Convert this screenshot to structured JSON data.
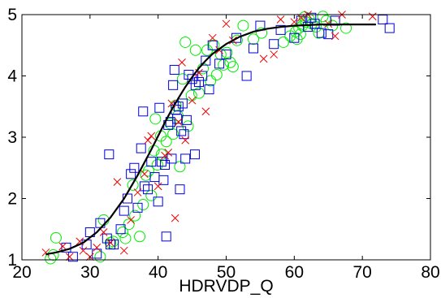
{
  "chart_data": {
    "type": "scatter",
    "title": "",
    "xlabel": "HDRVDP_Q",
    "ylabel": "",
    "xlim": [
      20,
      80
    ],
    "ylim": [
      1,
      5
    ],
    "xticks": [
      20,
      30,
      40,
      50,
      60,
      70,
      80
    ],
    "yticks": [
      1,
      2,
      3,
      4,
      5
    ],
    "grid": false,
    "legend": "none",
    "series": [
      {
        "marker": "circle",
        "color": "#00ee00",
        "points": [
          [
            24.2,
            1.02
          ],
          [
            24.6,
            1.08
          ],
          [
            25,
            1.36
          ],
          [
            31.5,
            1.05
          ],
          [
            32,
            1.65
          ],
          [
            33,
            1.28
          ],
          [
            33.4,
            1.3
          ],
          [
            34.8,
            1.45
          ],
          [
            35.2,
            1.35
          ],
          [
            35.7,
            1.58
          ],
          [
            36.3,
            2.22
          ],
          [
            36.6,
            1.72
          ],
          [
            37.3,
            1.38
          ],
          [
            37.8,
            1.9
          ],
          [
            38.2,
            2.38
          ],
          [
            38.6,
            2.45
          ],
          [
            39,
            2.05
          ],
          [
            39.4,
            2.78
          ],
          [
            39.6,
            3.3
          ],
          [
            40.5,
            2.72
          ],
          [
            41.2,
            2.93
          ],
          [
            41.8,
            3.22
          ],
          [
            42.2,
            3.05
          ],
          [
            42.6,
            3.52
          ],
          [
            43.2,
            2.52
          ],
          [
            43.6,
            3.95
          ],
          [
            44,
            4.55
          ],
          [
            44.4,
            3.18
          ],
          [
            44.9,
            3.68
          ],
          [
            45.5,
            4.42
          ],
          [
            46,
            3.72
          ],
          [
            46.6,
            4.12
          ],
          [
            47.2,
            4.42
          ],
          [
            47.7,
            3.92
          ],
          [
            48.2,
            4.5
          ],
          [
            48.6,
            4.02
          ],
          [
            49.2,
            4.35
          ],
          [
            49.6,
            4.18
          ],
          [
            50.1,
            4.38
          ],
          [
            50.6,
            4.22
          ],
          [
            51,
            4.15
          ],
          [
            51.6,
            4.58
          ],
          [
            52.5,
            4.82
          ],
          [
            54,
            4.6
          ],
          [
            55.2,
            4.7
          ],
          [
            58.4,
            4.55
          ],
          [
            59.4,
            4.65
          ],
          [
            60.2,
            4.72
          ],
          [
            60.7,
            4.78
          ],
          [
            61.2,
            4.82
          ],
          [
            61.7,
            4.88
          ],
          [
            62.2,
            4.92
          ],
          [
            62.6,
            4.85
          ],
          [
            63.2,
            4.8
          ],
          [
            64.2,
            4.97
          ],
          [
            64.7,
            4.9
          ],
          [
            65.6,
            4.82
          ],
          [
            67.6,
            4.78
          ],
          [
            39.9,
            2.55
          ],
          [
            40.4,
            3.02
          ],
          [
            42.9,
            3.35
          ],
          [
            60.4,
            4.6
          ],
          [
            60.9,
            4.68
          ],
          [
            61.5,
            4.96
          ],
          [
            63.6,
            4.7
          ]
        ]
      },
      {
        "marker": "square",
        "color": "#0000dd",
        "points": [
          [
            26.5,
            1.2
          ],
          [
            27.5,
            1.05
          ],
          [
            29.5,
            1.25
          ],
          [
            30,
            1.45
          ],
          [
            31,
            1.1
          ],
          [
            31.5,
            1.6
          ],
          [
            32.5,
            1.35
          ],
          [
            32.8,
            2.72
          ],
          [
            33,
            1.25
          ],
          [
            33.5,
            1.25
          ],
          [
            34.5,
            1.5
          ],
          [
            35,
            1.8
          ],
          [
            35.5,
            2.0
          ],
          [
            36,
            2.4
          ],
          [
            36.5,
            2.5
          ],
          [
            37,
            1.85
          ],
          [
            37.5,
            2.82
          ],
          [
            37.8,
            3.42
          ],
          [
            38,
            2.2
          ],
          [
            38.5,
            2.15
          ],
          [
            39,
            2.6
          ],
          [
            39.5,
            2.35
          ],
          [
            40,
            1.95
          ],
          [
            40.2,
            3.48
          ],
          [
            40.5,
            2.6
          ],
          [
            40.8,
            2.3
          ],
          [
            41,
            2.55
          ],
          [
            41.2,
            1.38
          ],
          [
            41.5,
            3.2
          ],
          [
            41.8,
            3.25
          ],
          [
            42,
            2.65
          ],
          [
            42.2,
            3.85
          ],
          [
            42.4,
            4.1
          ],
          [
            42.6,
            3.45
          ],
          [
            42.8,
            3.3
          ],
          [
            43,
            3.5
          ],
          [
            43.2,
            2.15
          ],
          [
            43.4,
            3.1
          ],
          [
            43.6,
            3.55
          ],
          [
            43.8,
            3.05
          ],
          [
            44,
            2.65
          ],
          [
            44.2,
            3.28
          ],
          [
            44.5,
            4.02
          ],
          [
            45,
            3.95
          ],
          [
            45.4,
            2.72
          ],
          [
            45.5,
            3.85
          ],
          [
            46,
            3.9
          ],
          [
            46.5,
            4.0
          ],
          [
            47,
            4.25
          ],
          [
            47.5,
            3.78
          ],
          [
            48,
            4.5
          ],
          [
            49,
            4.2
          ],
          [
            50,
            4.35
          ],
          [
            51.5,
            4.62
          ],
          [
            53,
            4.0
          ],
          [
            54,
            4.45
          ],
          [
            55,
            4.82
          ],
          [
            57,
            4.52
          ],
          [
            58,
            4.75
          ],
          [
            60,
            4.62
          ],
          [
            61,
            4.9
          ],
          [
            62,
            4.8
          ],
          [
            62.5,
            4.95
          ],
          [
            63,
            4.85
          ],
          [
            64,
            4.7
          ],
          [
            65,
            4.68
          ],
          [
            66,
            4.9
          ],
          [
            73,
            4.92
          ],
          [
            74,
            4.78
          ]
        ]
      },
      {
        "marker": "cross",
        "color": "#ee0000",
        "points": [
          [
            23.5,
            1.12
          ],
          [
            26,
            1.22
          ],
          [
            27,
            1.05
          ],
          [
            28.5,
            1.3
          ],
          [
            29,
            1.15
          ],
          [
            30,
            1.05
          ],
          [
            31,
            1.2
          ],
          [
            32,
            1.45
          ],
          [
            33,
            1.28
          ],
          [
            34,
            2.27
          ],
          [
            35,
            1.15
          ],
          [
            36,
            1.65
          ],
          [
            37,
            2.1
          ],
          [
            38,
            2.4
          ],
          [
            38.5,
            2.95
          ],
          [
            39,
            3.02
          ],
          [
            40,
            2.2
          ],
          [
            41,
            2.7
          ],
          [
            41.5,
            2.75
          ],
          [
            42,
            3.55
          ],
          [
            42.5,
            1.68
          ],
          [
            43,
            3.25
          ],
          [
            43.5,
            4.22
          ],
          [
            44,
            2.95
          ],
          [
            45,
            3.6
          ],
          [
            46,
            4.05
          ],
          [
            47,
            3.42
          ],
          [
            48,
            4.62
          ],
          [
            49,
            4.42
          ],
          [
            50,
            4.85
          ],
          [
            51,
            4.58
          ],
          [
            55.5,
            4.28
          ],
          [
            57,
            4.35
          ],
          [
            58,
            4.92
          ],
          [
            60,
            4.88
          ],
          [
            61,
            4.95
          ],
          [
            62,
            5.0
          ],
          [
            65,
            4.85
          ],
          [
            66,
            4.65
          ],
          [
            67,
            5.0
          ],
          [
            71.5,
            4.97
          ]
        ]
      }
    ],
    "fit_curve": {
      "type": "line",
      "color": "#000000",
      "points": [
        [
          23.5,
          1.09
        ],
        [
          25,
          1.12
        ],
        [
          27,
          1.18
        ],
        [
          29,
          1.28
        ],
        [
          31,
          1.45
        ],
        [
          33,
          1.69
        ],
        [
          35,
          2.0
        ],
        [
          37,
          2.38
        ],
        [
          38,
          2.59
        ],
        [
          39,
          2.8
        ],
        [
          40,
          3.02
        ],
        [
          41,
          3.24
        ],
        [
          42,
          3.45
        ],
        [
          43,
          3.64
        ],
        [
          44,
          3.82
        ],
        [
          45,
          3.98
        ],
        [
          46,
          4.13
        ],
        [
          47,
          4.25
        ],
        [
          48,
          4.36
        ],
        [
          50,
          4.52
        ],
        [
          52,
          4.64
        ],
        [
          54,
          4.72
        ],
        [
          56,
          4.77
        ],
        [
          58,
          4.8
        ],
        [
          60,
          4.82
        ],
        [
          64,
          4.84
        ],
        [
          68,
          4.84
        ],
        [
          72,
          4.84
        ]
      ]
    }
  }
}
